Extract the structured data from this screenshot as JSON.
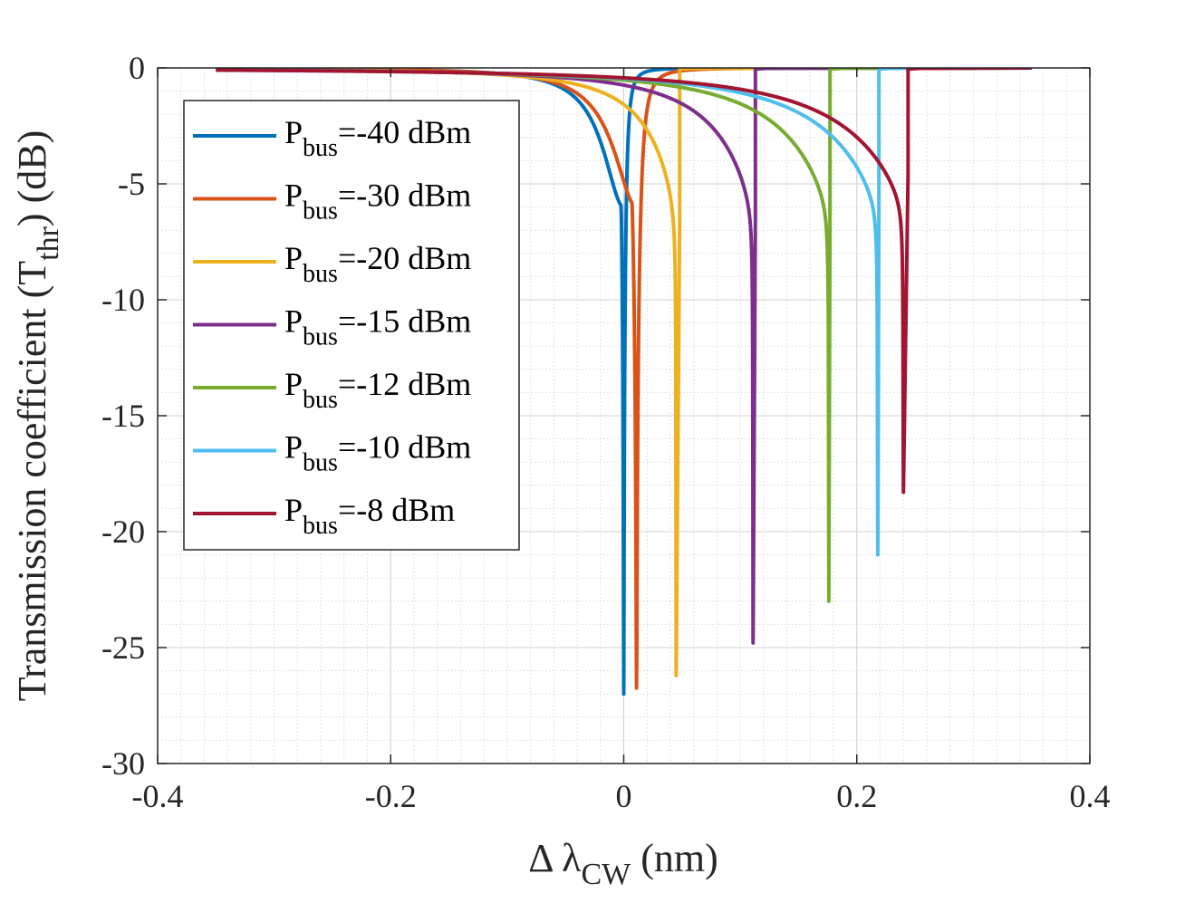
{
  "chart_data": {
    "type": "line",
    "title": "",
    "xlabel": {
      "main": "Δ λ",
      "sub": "CW",
      "unit": " (nm)"
    },
    "ylabel": {
      "main": "Transmission coefficient (T",
      "sub": "thr",
      "unit": ") (dB)"
    },
    "xlim": [
      -0.4,
      0.4
    ],
    "ylim": [
      -30,
      0
    ],
    "xticks": [
      "-0.4",
      "-0.2",
      "0",
      "0.2",
      "0.4"
    ],
    "yticks": [
      "0",
      "-5",
      "-10",
      "-15",
      "-20",
      "-25",
      "-30"
    ],
    "grid": true,
    "minor_grid": true,
    "legend_position": "top-left",
    "x_data_range": [
      -0.35,
      0.35
    ],
    "series": [
      {
        "name": "P_bus=-40 dBm",
        "label_main": "P",
        "label_sub": "bus",
        "label_rest": "=-40 dBm",
        "color": "#0072BD",
        "dip_x": 0.0,
        "min_db": -27.0,
        "right_width": 0.0038,
        "drop_x": null
      },
      {
        "name": "P_bus=-30 dBm",
        "label_main": "P",
        "label_sub": "bus",
        "label_rest": "=-30 dBm",
        "color": "#D95319",
        "dip_x": 0.011,
        "min_db": -26.8,
        "right_width": 0.0065,
        "drop_x": null
      },
      {
        "name": "P_bus=-20 dBm",
        "label_main": "P",
        "label_sub": "bus",
        "label_rest": "=-20 dBm",
        "color": "#EDB120",
        "dip_x": 0.045,
        "min_db": -26.2,
        "right_width": null,
        "drop_x": 0.048
      },
      {
        "name": "P_bus=-15 dBm",
        "label_main": "P",
        "label_sub": "bus",
        "label_rest": "=-15 dBm",
        "color": "#7E2F8E",
        "dip_x": 0.111,
        "min_db": -24.8,
        "right_width": null,
        "drop_x": 0.113
      },
      {
        "name": "P_bus=-12 dBm",
        "label_main": "P",
        "label_sub": "bus",
        "label_rest": "=-12 dBm",
        "color": "#77AC30",
        "dip_x": 0.176,
        "min_db": -23.0,
        "right_width": null,
        "drop_x": 0.177
      },
      {
        "name": "P_bus=-10 dBm",
        "label_main": "P",
        "label_sub": "bus",
        "label_rest": "=-10 dBm",
        "color": "#4DBEEE",
        "dip_x": 0.218,
        "min_db": -21.0,
        "right_width": null,
        "drop_x": 0.219
      },
      {
        "name": "P_bus=-8 dBm",
        "label_main": "P",
        "label_sub": "bus",
        "label_rest": "=-8 dBm",
        "color": "#A2142F",
        "dip_x": 0.24,
        "min_db": -18.3,
        "right_width": null,
        "drop_x": 0.244
      }
    ]
  }
}
